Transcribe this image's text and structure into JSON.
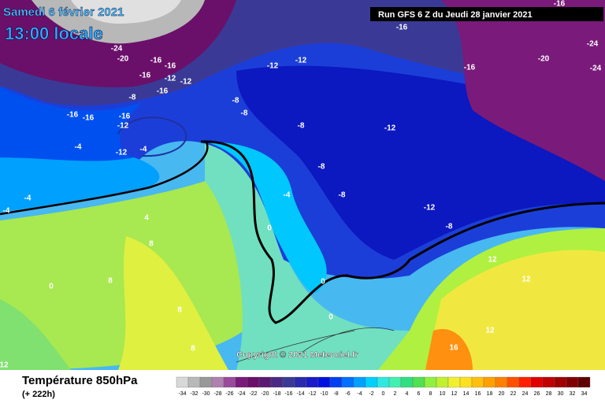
{
  "header": {
    "date": "Samedi 6 février 2021",
    "time": "13:00 locale",
    "run": "Run GFS 6 Z du Jeudi 28 janvier 2021"
  },
  "copyright": "Copyright © 2021 Meteociel.fr",
  "legend": {
    "title": "Température 850hPa",
    "lead": "(+ 222h)",
    "ticks": [
      -34,
      -32,
      -30,
      -28,
      -26,
      -24,
      -22,
      -20,
      -18,
      -16,
      -14,
      -12,
      -10,
      -8,
      -6,
      -4,
      -2,
      0,
      2,
      4,
      6,
      8,
      10,
      12,
      14,
      16,
      18,
      20,
      22,
      24,
      26,
      28,
      30,
      32,
      34
    ],
    "colors": [
      "#d8d8d8",
      "#b8b8b8",
      "#989898",
      "#b080b0",
      "#9a4a9a",
      "#7a1a7a",
      "#6a106a",
      "#5a1a72",
      "#4a2a84",
      "#3a3a96",
      "#2a2aae",
      "#1a1ac8",
      "#0010e0",
      "#0040f0",
      "#0070ff",
      "#00a0ff",
      "#00d0ff",
      "#30e8e0",
      "#40f0b0",
      "#30e080",
      "#50e050",
      "#90f040",
      "#c0f030",
      "#f0f030",
      "#ffe020",
      "#ffc010",
      "#ffa000",
      "#ff8000",
      "#ff5000",
      "#ff2000",
      "#e00000",
      "#c00000",
      "#a00000",
      "#800000",
      "#600000"
    ]
  },
  "contour_labels": [
    -16,
    -16,
    -24,
    -24,
    -20,
    -16,
    -24,
    -20,
    -16,
    -16,
    -12,
    -12,
    -16,
    -16,
    -12,
    -12,
    -8,
    -8,
    -8,
    -16,
    -16,
    -16,
    -12,
    -12,
    -4,
    -4,
    -8,
    -12,
    -8,
    -4,
    -8,
    -12,
    -8,
    -4,
    -4,
    0,
    4,
    8,
    8,
    0,
    0,
    0,
    8,
    8,
    12,
    12,
    12,
    16,
    12
  ]
}
